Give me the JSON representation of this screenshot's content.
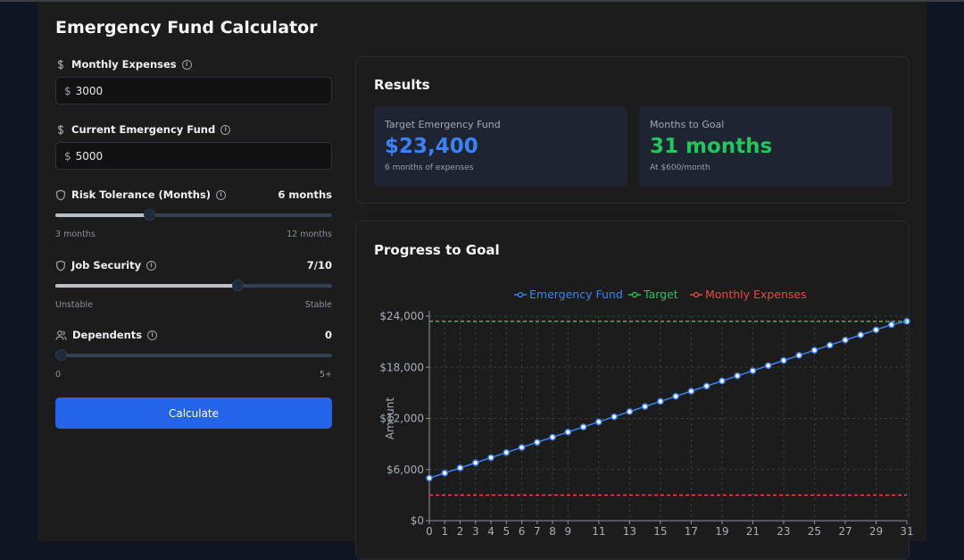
{
  "title": "Emergency Fund Calculator",
  "form": {
    "monthly_expenses": {
      "label": "Monthly Expenses",
      "currency": "$",
      "value": "3000"
    },
    "current_fund": {
      "label": "Current Emergency Fund",
      "currency": "$",
      "value": "5000"
    },
    "risk_tolerance": {
      "label": "Risk Tolerance (Months)",
      "display": "6 months",
      "min_label": "3 months",
      "max_label": "12 months",
      "value": 6,
      "min": 3,
      "max": 12
    },
    "job_security": {
      "label": "Job Security",
      "display": "7/10",
      "min_label": "Unstable",
      "max_label": "Stable",
      "value": 7,
      "min": 1,
      "max": 10
    },
    "dependents": {
      "label": "Dependents",
      "display": "0",
      "min_label": "0",
      "max_label": "5+",
      "value": 0,
      "min": 0,
      "max": 5
    },
    "calculate_label": "Calculate"
  },
  "results": {
    "heading": "Results",
    "target": {
      "label": "Target Emergency Fund",
      "value": "$23,400",
      "sub": "6 months of expenses",
      "color": "#3b82f6"
    },
    "months": {
      "label": "Months to Goal",
      "value": "31 months",
      "sub": "At $600/month",
      "color": "#22c55e"
    }
  },
  "progress": {
    "heading": "Progress to Goal"
  },
  "chart_data": {
    "type": "line",
    "ylabel": "Amount",
    "ylim": [
      0,
      24000
    ],
    "yticks": [
      0,
      6000,
      12000,
      18000,
      24000
    ],
    "ytick_labels": [
      "$0",
      "$6,000",
      "$12,000",
      "$18,000",
      "$24,000"
    ],
    "x": [
      0,
      1,
      2,
      3,
      4,
      5,
      6,
      7,
      8,
      9,
      10,
      11,
      12,
      13,
      14,
      15,
      16,
      17,
      18,
      19,
      20,
      21,
      22,
      23,
      24,
      25,
      26,
      27,
      28,
      29,
      30,
      31
    ],
    "xtick_labels": [
      "0",
      "1",
      "2",
      "3",
      "4",
      "5",
      "6",
      "7",
      "8",
      "9",
      "11",
      "13",
      "15",
      "17",
      "19",
      "21",
      "23",
      "25",
      "27",
      "29",
      "31"
    ],
    "legend_position": "top-center",
    "grid": true,
    "series": [
      {
        "name": "Emergency Fund",
        "color": "#3b82f6",
        "values": [
          5000,
          5600,
          6200,
          6800,
          7400,
          8000,
          8600,
          9200,
          9800,
          10400,
          11000,
          11600,
          12200,
          12800,
          13400,
          14000,
          14600,
          15200,
          15800,
          16400,
          17000,
          17600,
          18200,
          18800,
          19400,
          20000,
          20600,
          21200,
          21800,
          22400,
          23000,
          23400
        ]
      },
      {
        "name": "Target",
        "color": "#22c55e",
        "constant": 23400
      },
      {
        "name": "Monthly Expenses",
        "color": "#ef4444",
        "constant": 3000
      }
    ]
  }
}
